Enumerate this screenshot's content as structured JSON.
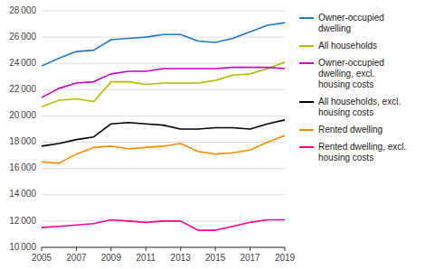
{
  "chart_data": {
    "type": "line",
    "x": [
      2005,
      2006,
      2007,
      2008,
      2009,
      2010,
      2011,
      2012,
      2013,
      2014,
      2015,
      2016,
      2017,
      2018,
      2019
    ],
    "series": [
      {
        "name": "Owner-occupied\ndwelling",
        "color": "#1f78c8",
        "values": [
          23800,
          24400,
          24900,
          25000,
          25800,
          25900,
          26000,
          26200,
          26200,
          25700,
          25600,
          25900,
          26400,
          26900,
          27100
        ]
      },
      {
        "name": "All households",
        "color": "#b8b800",
        "values": [
          20700,
          21200,
          21300,
          21100,
          22600,
          22600,
          22400,
          22500,
          22500,
          22500,
          22700,
          23100,
          23200,
          23600,
          24100
        ]
      },
      {
        "name": "Owner-occupied\ndwelling, excl.\nhousing costs",
        "color": "#c800c8",
        "values": [
          21400,
          22100,
          22500,
          22600,
          23200,
          23400,
          23400,
          23600,
          23600,
          23600,
          23600,
          23700,
          23700,
          23700,
          23600
        ]
      },
      {
        "name": "All households, excl.\nhousing costs",
        "color": "#000000",
        "values": [
          17700,
          17900,
          18200,
          18400,
          19400,
          19500,
          19400,
          19300,
          19000,
          19000,
          19100,
          19100,
          19000,
          19400,
          19700
        ]
      },
      {
        "name": "Rented dwelling",
        "color": "#ff8c00",
        "values": [
          16500,
          16400,
          17100,
          17600,
          17700,
          17500,
          17600,
          17700,
          17900,
          17300,
          17100,
          17200,
          17400,
          18000,
          18500
        ]
      },
      {
        "name": "Rented dwelling, excl.\nhousing costs",
        "color": "#ff0090",
        "values": [
          11500,
          11600,
          11700,
          11800,
          12100,
          12000,
          11900,
          12000,
          12000,
          11300,
          11300,
          11600,
          11900,
          12100,
          12100
        ]
      }
    ],
    "xlim": [
      2005,
      2019
    ],
    "xticks": [
      2005,
      2007,
      2009,
      2011,
      2013,
      2015,
      2017,
      2019
    ],
    "ylim": [
      10000,
      28000
    ],
    "yticks": [
      {
        "value": 10000,
        "label": "10 000"
      },
      {
        "value": 12000,
        "label": "12 000"
      },
      {
        "value": 14000,
        "label": "14 000"
      },
      {
        "value": 16000,
        "label": "16 000"
      },
      {
        "value": 18000,
        "label": "18 000"
      },
      {
        "value": 20000,
        "label": "20 000"
      },
      {
        "value": 22000,
        "label": "22 000"
      },
      {
        "value": 24000,
        "label": "24 000"
      },
      {
        "value": 26000,
        "label": "26 000"
      },
      {
        "value": 28000,
        "label": "28 000"
      }
    ],
    "grid": true,
    "legend": "right"
  }
}
